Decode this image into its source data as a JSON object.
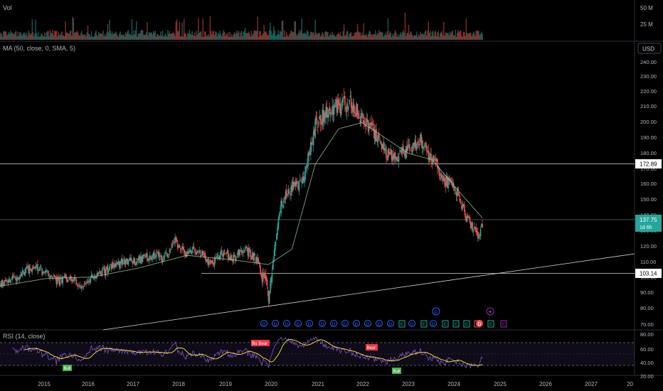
{
  "panes": {
    "volume": {
      "label": "Vol",
      "axis_ticks": [
        "50 M",
        "25 M"
      ]
    },
    "price": {
      "label": "MA (50, close, 0, SMA, 5)",
      "currency_button": "USD",
      "axis_ticks": [
        "240.00",
        "230.00",
        "220.00",
        "210.00",
        "200.00",
        "190.00",
        "180.00",
        "170.00",
        "160.00",
        "150.00",
        "140.00",
        "130.00",
        "120.00",
        "110.00",
        "100.00",
        "90.00",
        "80.00",
        "70.00"
      ]
    },
    "rsi": {
      "label": "RSI (14, close)",
      "axis_ticks": [
        "80.00",
        "60.00",
        "40.00",
        "20.00"
      ]
    }
  },
  "price_labels": {
    "resistance": "172.89",
    "current": "137.75",
    "countdown": "1d 6h",
    "support": "103.14"
  },
  "signal_labels": {
    "bull_1": "Bull",
    "bear_1": "Bear",
    "bear_2": "Bear",
    "bull_2": "Bull",
    "bear_partial": "Bu"
  },
  "time_axis": [
    "2015",
    "2016",
    "2017",
    "2018",
    "2019",
    "2020",
    "2021",
    "2022",
    "2023",
    "2024",
    "2025",
    "2026",
    "2027",
    "20"
  ],
  "event_markers": {
    "dividend_glyph": "D",
    "earnings_glyph": "E",
    "plus_glyph": "+"
  },
  "colors": {
    "up": "#26a69a",
    "down": "#ef5350",
    "ma": "#a5d6a7",
    "rsi": "#7e57c2",
    "rsi_ma": "#ffeb3b",
    "current_label": "#26a69a",
    "dividend": "#2962ff",
    "earnings": "#26a69a",
    "earnings_future": "#9c27b0"
  },
  "chart_data": {
    "type": "candlestick",
    "x_range": [
      "2014-06",
      "2028-01"
    ],
    "y_range": [
      70,
      240
    ],
    "price_series": {
      "name": "Close",
      "x": [
        "2014-06",
        "2014-09",
        "2014-12",
        "2015-03",
        "2015-06",
        "2015-09",
        "2015-12",
        "2016-03",
        "2016-06",
        "2016-09",
        "2016-12",
        "2017-03",
        "2017-06",
        "2017-09",
        "2017-12",
        "2018-03",
        "2018-06",
        "2018-09",
        "2018-12",
        "2019-03",
        "2019-06",
        "2019-09",
        "2019-12",
        "2020-03",
        "2020-06",
        "2020-09",
        "2020-12",
        "2021-03",
        "2021-06",
        "2021-09",
        "2021-12",
        "2022-03",
        "2022-06",
        "2022-09",
        "2022-12",
        "2023-03",
        "2023-06",
        "2023-09",
        "2023-12",
        "2024-03",
        "2024-06",
        "2024-09",
        "2024-10"
      ],
      "y": [
        97,
        100,
        105,
        109,
        104,
        99,
        102,
        96,
        103,
        106,
        110,
        112,
        113,
        116,
        115,
        125,
        117,
        120,
        110,
        118,
        114,
        120,
        113,
        90,
        148,
        160,
        165,
        200,
        210,
        212,
        215,
        205,
        195,
        182,
        180,
        185,
        190,
        178,
        165,
        160,
        140,
        128,
        138
      ]
    },
    "moving_average": {
      "name": "MA (50, close, 0, SMA, 5)",
      "x": [
        "2014-06",
        "2015-06",
        "2016-06",
        "2017-06",
        "2018-06",
        "2019-06",
        "2020-03",
        "2020-09",
        "2021-03",
        "2021-09",
        "2022-03",
        "2022-09",
        "2023-03",
        "2023-09",
        "2024-03",
        "2024-10"
      ],
      "y": [
        96,
        101,
        102,
        108,
        116,
        113,
        110,
        120,
        175,
        198,
        202,
        192,
        182,
        178,
        160,
        140
      ]
    },
    "horizontal_lines": [
      172.89,
      137.75,
      103.14
    ],
    "trendline": {
      "from": [
        "2016-04",
        70
      ],
      "to": [
        "2028-01",
        114
      ]
    },
    "rsi": {
      "name": "RSI (14, close)",
      "y_range": [
        20,
        80
      ],
      "upper_band": 70,
      "lower_band": 30,
      "midline": 50
    },
    "grid": false,
    "legend": "top-left"
  }
}
